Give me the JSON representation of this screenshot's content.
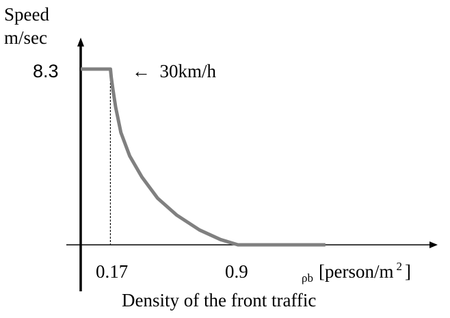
{
  "chart_data": {
    "type": "line",
    "ylabel_line1": "Speed",
    "ylabel_line2": "m/sec",
    "xlabel": "Density of the front traffic",
    "x_unit_symbol": "ρb",
    "x_unit_text": "[person/m",
    "x_unit_sup": "2",
    "x_unit_close": "]",
    "y_tick": "8.3",
    "x_ticks": [
      "0.17",
      "0.9"
    ],
    "annotation": "←  30km/h",
    "xlim": [
      0,
      1.4
    ],
    "ylim": [
      0,
      8.3
    ],
    "grid": false,
    "series": [
      {
        "x": [
          0,
          0.17,
          0.175,
          0.185,
          0.2,
          0.23,
          0.28,
          0.35,
          0.44,
          0.55,
          0.68,
          0.8,
          0.9,
          1.4
        ],
        "y": [
          8.3,
          8.3,
          7.9,
          7.3,
          6.5,
          5.3,
          4.2,
          3.2,
          2.2,
          1.4,
          0.7,
          0.25,
          0.0,
          0.0
        ],
        "color": "#808080"
      }
    ],
    "colors": {
      "axis": "#000000",
      "series": "#808080"
    }
  }
}
